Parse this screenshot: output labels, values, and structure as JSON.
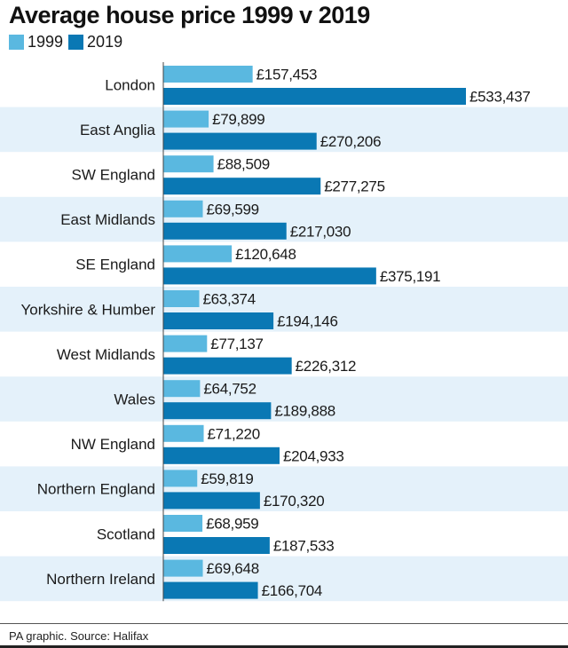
{
  "chart_data": {
    "type": "bar",
    "orientation": "horizontal",
    "title": "Average house price 1999 v 2019",
    "categories": [
      "London",
      "East Anglia",
      "SW England",
      "East Midlands",
      "SE England",
      "Yorkshire & Humber",
      "West Midlands",
      "Wales",
      "NW England",
      "Northern England",
      "Scotland",
      "Northern Ireland"
    ],
    "series": [
      {
        "name": "1999",
        "color": "#5ab8e0",
        "values": [
          157453,
          79899,
          88509,
          69599,
          120648,
          63374,
          77137,
          64752,
          71220,
          59819,
          68959,
          69648
        ],
        "labels": [
          "£157,453",
          "£79,899",
          "£88,509",
          "£69,599",
          "£120,648",
          "£63,374",
          "£77,137",
          "£64,752",
          "£71,220",
          "£59,819",
          "£68,959",
          "£69,648"
        ]
      },
      {
        "name": "2019",
        "color": "#0a78b4",
        "values": [
          533437,
          270206,
          277275,
          217030,
          375191,
          194146,
          226312,
          189888,
          204933,
          170320,
          187533,
          166704
        ],
        "labels": [
          "£533,437",
          "£270,206",
          "£277,275",
          "£217,030",
          "£375,191",
          "£194,146",
          "£226,312",
          "£189,888",
          "£204,933",
          "£170,320",
          "£187,533",
          "£166,704"
        ]
      }
    ],
    "xlim": [
      0,
      533437
    ],
    "grid": false,
    "legend_position": "top-left"
  },
  "source": "PA graphic. Source: Halifax",
  "colors": {
    "band": "#e4f1fa",
    "axis": "#444444"
  }
}
